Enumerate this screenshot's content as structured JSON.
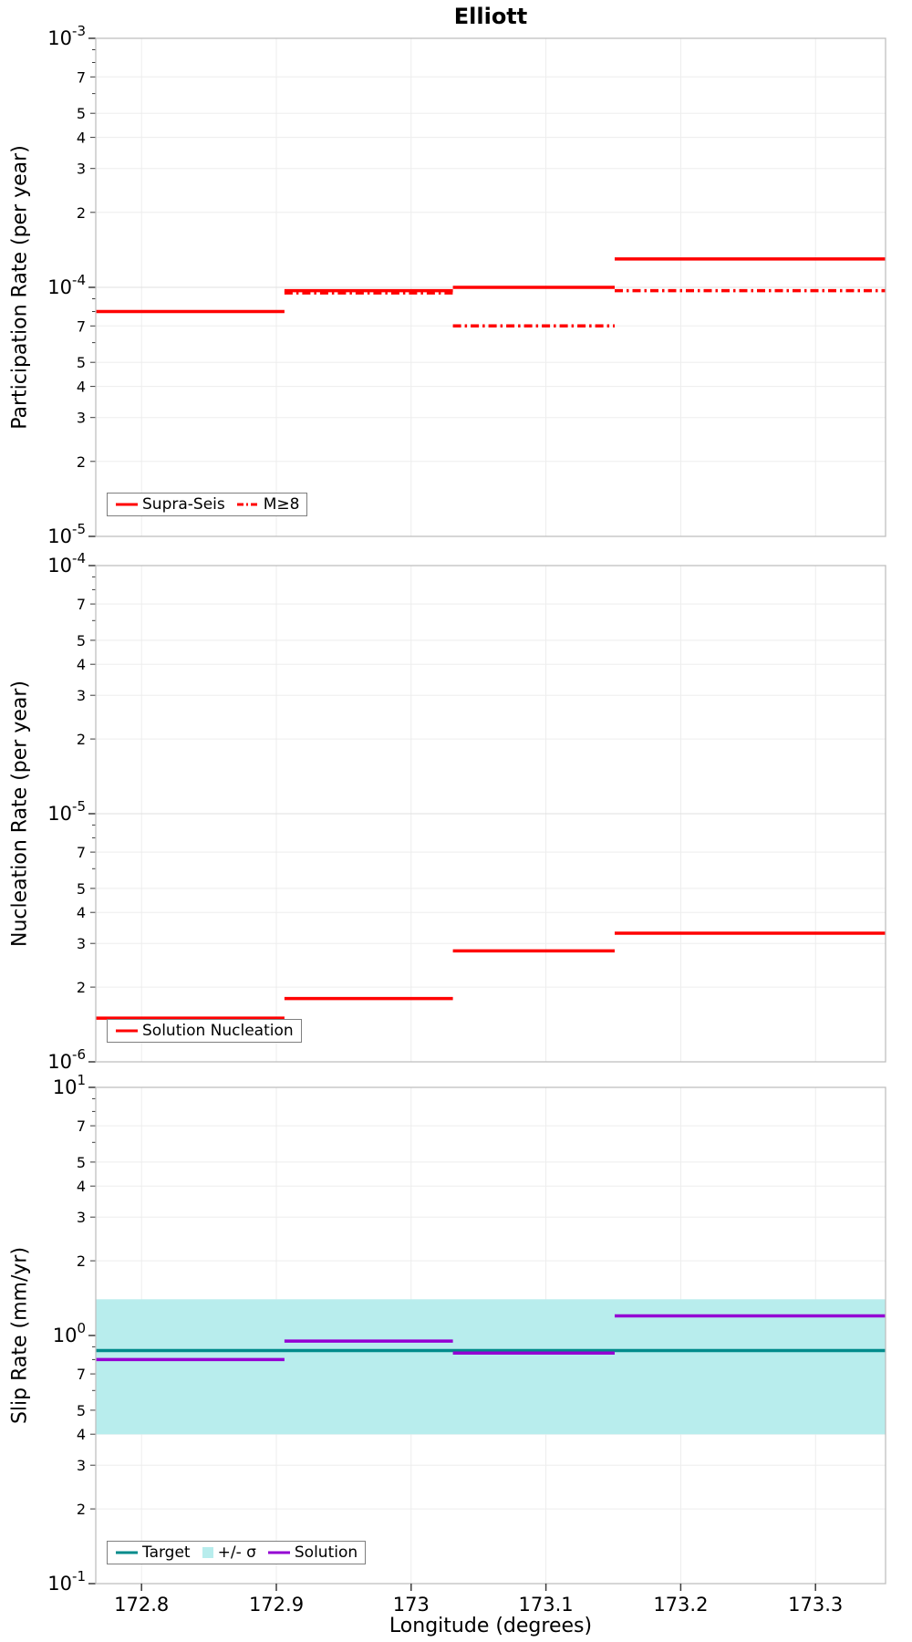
{
  "title": "Elliott",
  "x_axis": {
    "label": "Longitude (degrees)",
    "range": [
      172.766,
      173.352
    ],
    "ticks": [
      172.8,
      172.9,
      173,
      173.1,
      173.2,
      173.3
    ],
    "tick_labels": [
      "172.8",
      "172.9",
      "173",
      "173.1",
      "173.2",
      "173.3"
    ]
  },
  "segment_edges": [
    172.766,
    172.906,
    173.031,
    173.151,
    173.352
  ],
  "colors": {
    "red": "#ff0000",
    "teal": "#008b8b",
    "band": "#b8eded",
    "purple": "#9400d3",
    "grid_major": "#e0e0e0",
    "grid_minor": "#ededed",
    "frame": "#bfbfbf",
    "tick": "#3a3a3a"
  },
  "chart_data": [
    {
      "id": "participation",
      "type": "line",
      "step": true,
      "ylog": true,
      "ylabel": "Participation Rate (per year)",
      "ylim_exp": [
        -5,
        -3
      ],
      "y_minor_labeled": [
        2,
        3,
        4,
        5,
        7
      ],
      "grid": true,
      "legend_position": "bottom-left",
      "legend": [
        {
          "label": "Supra-Seis",
          "style": "solid"
        },
        {
          "label": "M≥8",
          "style": "dashdot"
        }
      ],
      "series": [
        {
          "name": "Supra-Seis",
          "style": "solid",
          "color": "#ff0000",
          "values": [
            8e-05,
            9.7e-05,
            0.0001,
            0.00013
          ]
        },
        {
          "name": "M≥8",
          "style": "dashdot",
          "color": "#ff0000",
          "values": [
            null,
            9.5e-05,
            7e-05,
            9.7e-05
          ]
        }
      ]
    },
    {
      "id": "nucleation",
      "type": "line",
      "step": true,
      "ylog": true,
      "ylabel": "Nucleation Rate (per year)",
      "ylim_exp": [
        -6,
        -4
      ],
      "y_minor_labeled": [
        2,
        3,
        4,
        5,
        7
      ],
      "grid": true,
      "legend_position": "bottom-left",
      "legend": [
        {
          "label": "Solution Nucleation",
          "style": "solid"
        }
      ],
      "series": [
        {
          "name": "Solution Nucleation",
          "style": "solid",
          "color": "#ff0000",
          "values": [
            1.5e-06,
            1.8e-06,
            2.8e-06,
            3.3e-06
          ]
        }
      ]
    },
    {
      "id": "slip-rate",
      "type": "line",
      "step": true,
      "ylog": true,
      "ylabel": "Slip Rate (mm/yr)",
      "ylim_exp": [
        -1,
        1
      ],
      "y_minor_labeled": [
        2,
        3,
        4,
        5,
        7
      ],
      "grid": true,
      "legend_position": "bottom-left",
      "legend": [
        {
          "label": "Target",
          "style": "solid"
        },
        {
          "label": "+/- σ",
          "style": "patch"
        },
        {
          "label": "Solution",
          "style": "solid"
        }
      ],
      "band": {
        "name": "+/- σ",
        "low": 0.4,
        "high": 1.4,
        "color": "#b8eded"
      },
      "target": {
        "name": "Target",
        "value": 0.87,
        "color": "#008b8b"
      },
      "series": [
        {
          "name": "Solution",
          "style": "solid",
          "color": "#9400d3",
          "values": [
            0.8,
            0.95,
            0.85,
            1.2
          ]
        }
      ]
    }
  ]
}
